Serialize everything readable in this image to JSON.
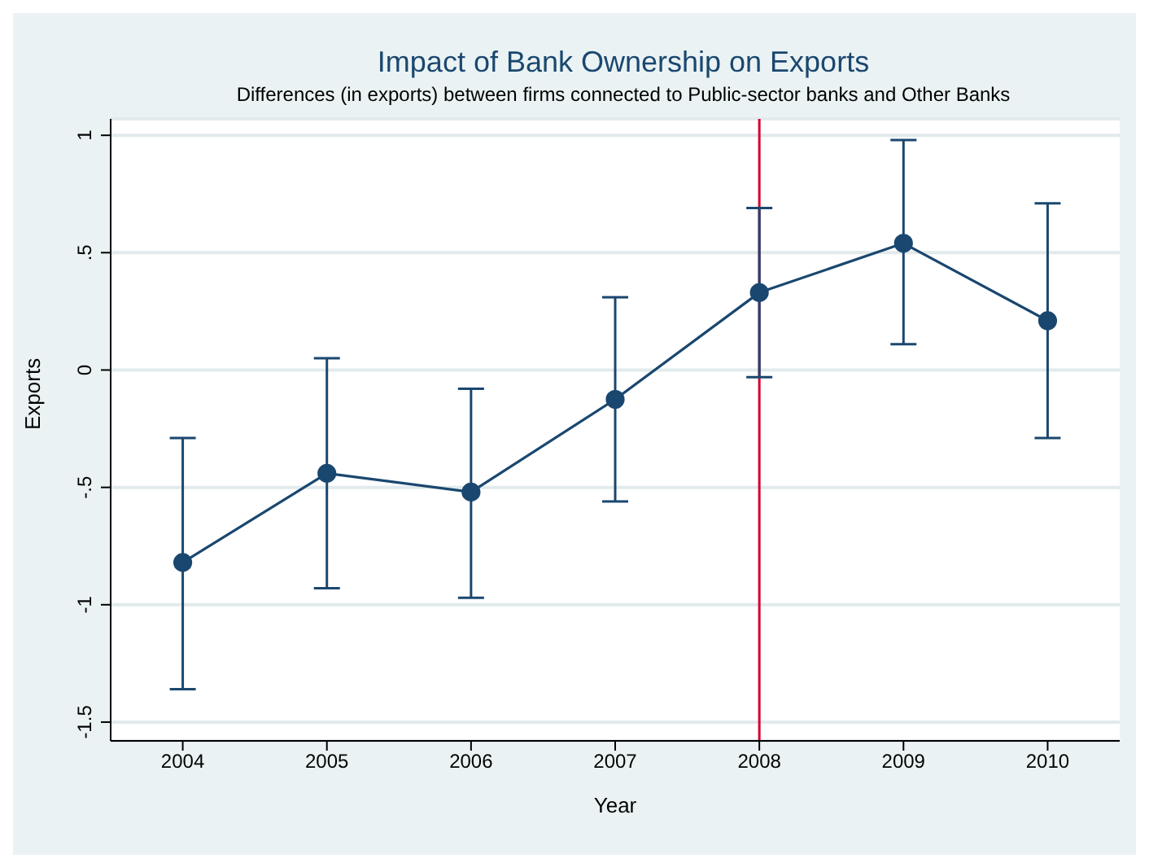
{
  "chart_data": {
    "type": "line",
    "title": "Impact of Bank Ownership on Exports",
    "subtitle": "Differences (in exports) between firms connected to Public-sector banks and Other Banks",
    "xlabel": "Year",
    "ylabel": "Exports",
    "x": [
      2004,
      2005,
      2006,
      2007,
      2008,
      2009,
      2010
    ],
    "series": [
      {
        "color": "#1a476f",
        "values": [
          -0.82,
          -0.44,
          -0.52,
          -0.125,
          0.33,
          0.54,
          0.21
        ],
        "errors": [
          [
            -1.36,
            -0.29
          ],
          [
            -0.93,
            0.05
          ],
          [
            -0.97,
            -0.08
          ],
          [
            -0.56,
            0.31
          ],
          [
            -0.03,
            0.69
          ],
          [
            0.11,
            0.98
          ],
          [
            -0.29,
            0.71
          ]
        ]
      }
    ],
    "xlim": [
      2003.5,
      2010.5
    ],
    "xticks": [
      2004,
      2005,
      2006,
      2007,
      2008,
      2009,
      2010
    ],
    "ylim": [
      -1.58,
      1.07
    ],
    "yticks": [
      {
        "value": -1.5,
        "label": "-1.5"
      },
      {
        "value": -1,
        "label": "-1"
      },
      {
        "value": -0.5,
        "label": "-.5"
      },
      {
        "value": 0,
        "label": "0"
      },
      {
        "value": 0.5,
        "label": ".5"
      },
      {
        "value": 1,
        "label": "1"
      }
    ],
    "ref_lines": [
      {
        "axis": "x",
        "value": 2008,
        "color": "#d4002f"
      }
    ],
    "grid": "y",
    "legend": false,
    "marker": "circle",
    "line_style": "solid"
  }
}
